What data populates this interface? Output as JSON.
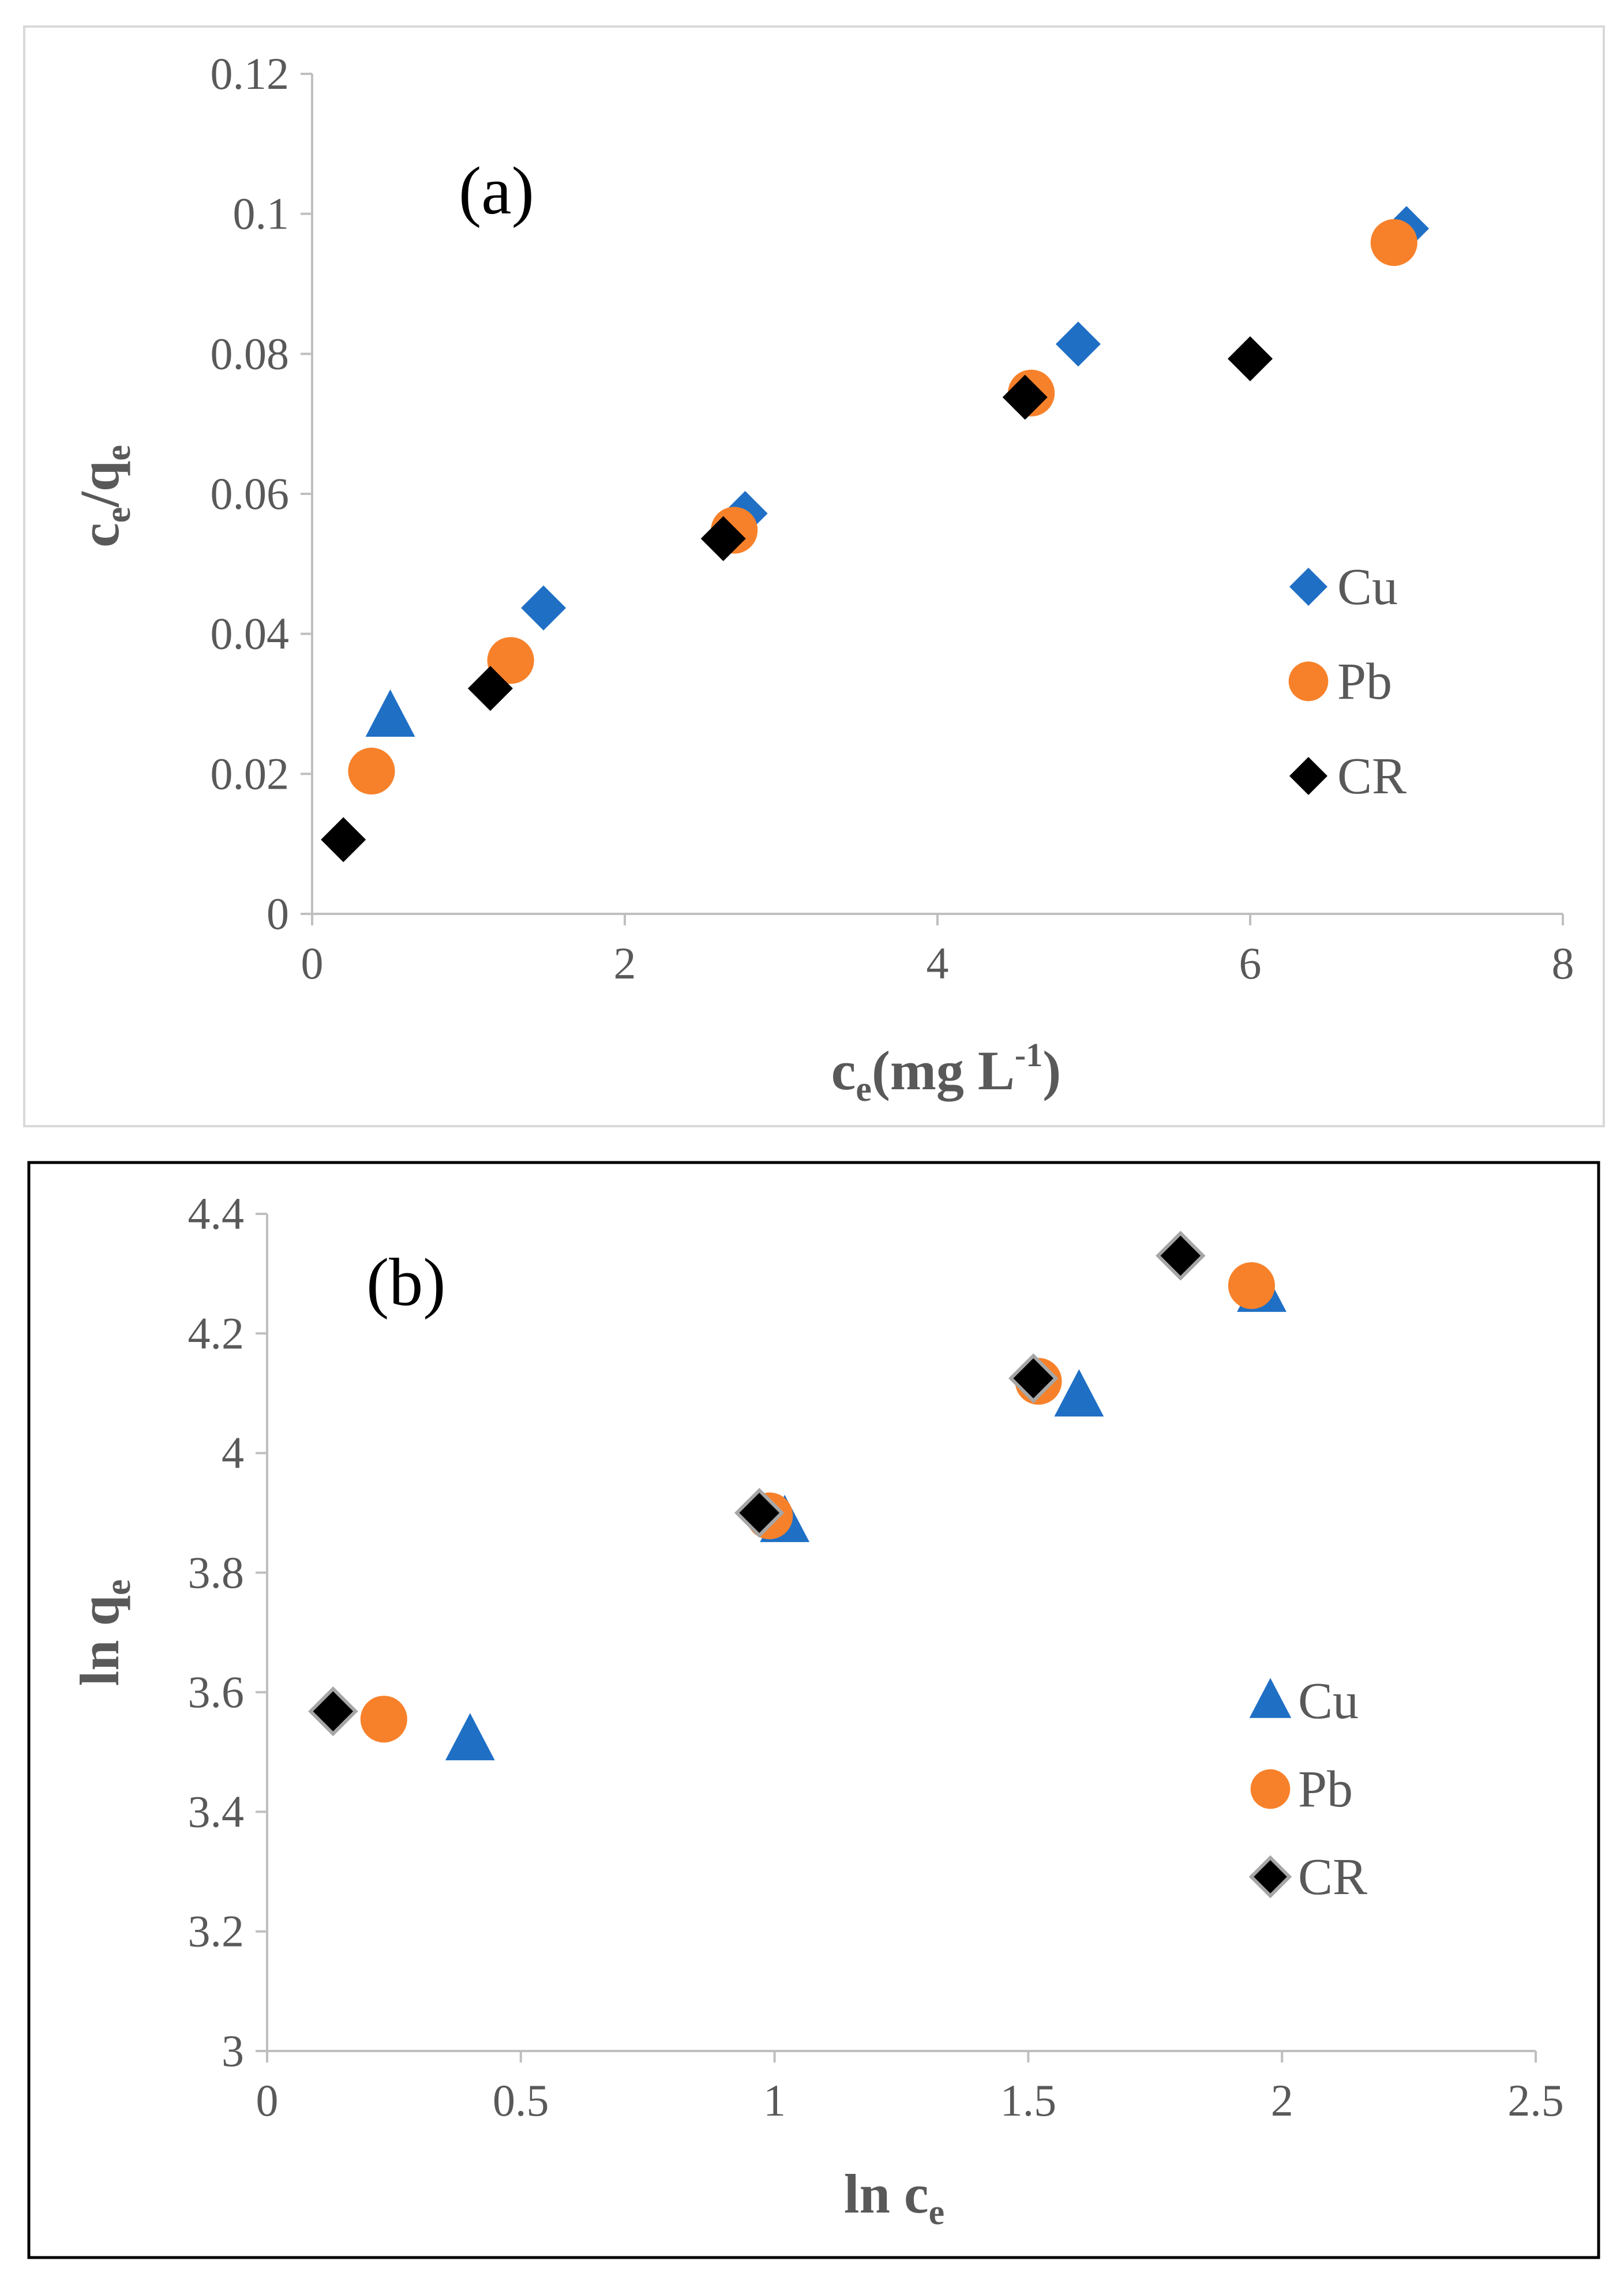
{
  "colors": {
    "cu": "#1F6FC5",
    "pb": "#F7812A",
    "cr": "#000000",
    "axis": "#BFBFBF",
    "text": "#595959"
  },
  "chart_data": [
    {
      "type": "scatter",
      "panel_label": "(a)",
      "xlabel": {
        "main": "c",
        "sub": "e",
        "rest": "(mg L",
        "sup": "-1",
        "close": ")"
      },
      "ylabel": {
        "c": "c",
        "sub1": "e",
        "slash": "/q",
        "sub2": "e"
      },
      "xlim": [
        0,
        8
      ],
      "ylim": [
        0,
        0.12
      ],
      "xticks": [
        0,
        2,
        4,
        6,
        8
      ],
      "xtick_labels": [
        "0",
        "2",
        "4",
        "6",
        "8"
      ],
      "yticks": [
        0,
        0.02,
        0.04,
        0.06,
        0.08,
        0.1,
        0.12
      ],
      "ytick_labels": [
        "0",
        "0.02",
        "0.04",
        "0.06",
        "0.08",
        "0.1",
        "0.12"
      ],
      "grid": false,
      "legend_position": "right",
      "series": [
        {
          "name": "Cu",
          "key": "cu",
          "legend_marker": "diamond",
          "points": [
            {
              "x": 0.5,
              "y": 0.0282,
              "marker": "triangle"
            },
            {
              "x": 1.48,
              "y": 0.0437,
              "marker": "diamond"
            },
            {
              "x": 2.77,
              "y": 0.0572,
              "marker": "diamond"
            },
            {
              "x": 4.9,
              "y": 0.0814,
              "marker": "diamond"
            },
            {
              "x": 7.0,
              "y": 0.0979,
              "marker": "diamond"
            }
          ]
        },
        {
          "name": "Pb",
          "key": "pb",
          "legend_marker": "circle",
          "points": [
            {
              "x": 0.38,
              "y": 0.0204,
              "marker": "circle"
            },
            {
              "x": 1.27,
              "y": 0.0362,
              "marker": "circle"
            },
            {
              "x": 2.7,
              "y": 0.0548,
              "marker": "circle"
            },
            {
              "x": 4.6,
              "y": 0.0744,
              "marker": "circle"
            },
            {
              "x": 6.92,
              "y": 0.0959,
              "marker": "circle"
            }
          ]
        },
        {
          "name": "CR",
          "key": "cr",
          "legend_marker": "diamond",
          "points": [
            {
              "x": 0.2,
              "y": 0.0106,
              "marker": "diamond"
            },
            {
              "x": 1.14,
              "y": 0.0322,
              "marker": "diamond"
            },
            {
              "x": 2.63,
              "y": 0.0536,
              "marker": "diamond"
            },
            {
              "x": 4.56,
              "y": 0.0738,
              "marker": "diamond"
            },
            {
              "x": 6.0,
              "y": 0.0793,
              "marker": "diamond"
            }
          ]
        }
      ]
    },
    {
      "type": "scatter",
      "panel_label": "(b)",
      "xlabel": {
        "main": "ln c",
        "sub": "e"
      },
      "ylabel": {
        "main": "ln q",
        "sub": "e"
      },
      "xlim": [
        0,
        2.5
      ],
      "ylim": [
        3,
        4.4
      ],
      "xticks": [
        0,
        0.5,
        1,
        1.5,
        2,
        2.5
      ],
      "xtick_labels": [
        "0",
        "0.5",
        "1",
        "1.5",
        "2",
        "2.5"
      ],
      "yticks": [
        3,
        3.2,
        3.4,
        3.6,
        3.8,
        4,
        4.2,
        4.4
      ],
      "ytick_labels": [
        "3",
        "3.2",
        "3.4",
        "3.6",
        "3.8",
        "4",
        "4.2",
        "4.4"
      ],
      "grid": false,
      "legend_position": "right",
      "series": [
        {
          "name": "Cu",
          "key": "cu",
          "legend_marker": "triangle",
          "points": [
            {
              "x": 0.4,
              "y": 3.52,
              "marker": "triangle"
            },
            {
              "x": 1.02,
              "y": 3.885,
              "marker": "triangle"
            },
            {
              "x": 1.6,
              "y": 4.095,
              "marker": "triangle"
            },
            {
              "x": 1.96,
              "y": 4.27,
              "marker": "triangle"
            }
          ]
        },
        {
          "name": "Pb",
          "key": "pb",
          "legend_marker": "circle",
          "points": [
            {
              "x": 0.23,
              "y": 3.555,
              "marker": "circle"
            },
            {
              "x": 0.99,
              "y": 3.895,
              "marker": "circle"
            },
            {
              "x": 1.52,
              "y": 4.12,
              "marker": "circle"
            },
            {
              "x": 1.94,
              "y": 4.28,
              "marker": "circle"
            }
          ]
        },
        {
          "name": "CR",
          "key": "cr",
          "legend_marker": "diamond-outlined",
          "points": [
            {
              "x": 0.13,
              "y": 3.568,
              "marker": "diamond-outlined"
            },
            {
              "x": 0.97,
              "y": 3.9,
              "marker": "diamond-outlined"
            },
            {
              "x": 1.51,
              "y": 4.125,
              "marker": "diamond-outlined"
            },
            {
              "x": 1.8,
              "y": 4.33,
              "marker": "diamond-outlined"
            }
          ]
        }
      ]
    }
  ]
}
